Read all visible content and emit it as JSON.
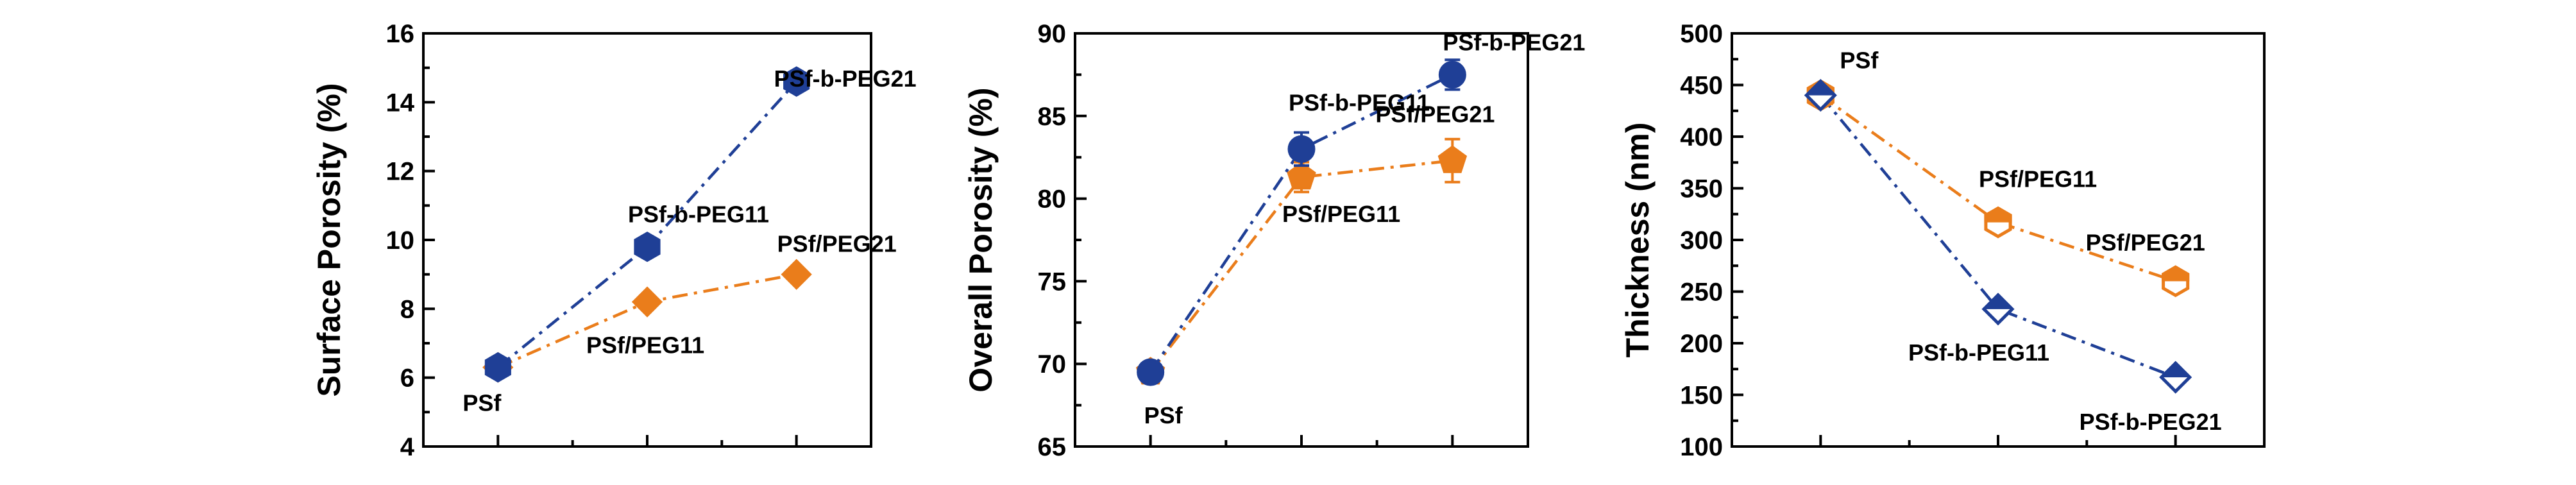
{
  "colors": {
    "blue": "#1f3f96",
    "orange": "#ea7d1b",
    "axis": "#000000"
  },
  "chart_data": [
    {
      "type": "line",
      "ylabel": "Surface Porosity (%)",
      "xlabel": "",
      "ylim": [
        4,
        16
      ],
      "yticks": [
        4,
        6,
        8,
        10,
        12,
        14,
        16
      ],
      "x": [
        1,
        2,
        3
      ],
      "grid": false,
      "series": [
        {
          "color": "orange",
          "marker": "diamond-filled",
          "values": [
            6.3,
            8.2,
            9.0
          ],
          "errors": [
            0,
            0,
            0
          ]
        },
        {
          "color": "blue",
          "marker": "hexagon-filled",
          "values": [
            6.3,
            9.8,
            14.6
          ],
          "errors": [
            0,
            0,
            0
          ]
        }
      ],
      "annotations": [
        {
          "text": "PSf",
          "x": 1,
          "y": 6.3,
          "anchor": "below"
        },
        {
          "text": "PSf-b-PEG11",
          "x": 2,
          "y": 9.8,
          "anchor": "above-left"
        },
        {
          "text": "PSf/PEG11",
          "x": 2,
          "y": 8.2,
          "anchor": "below-right"
        },
        {
          "text": "PSf-b-PEG21",
          "x": 3,
          "y": 14.6,
          "anchor": "above-left"
        },
        {
          "text": "PSf/PEG21",
          "x": 3,
          "y": 9.0,
          "anchor": "above"
        }
      ]
    },
    {
      "type": "line",
      "ylabel": "Overall Porosity (%)",
      "xlabel": "",
      "ylim": [
        65,
        90
      ],
      "yticks": [
        65,
        70,
        75,
        80,
        85,
        90
      ],
      "x": [
        1,
        2,
        3
      ],
      "grid": false,
      "series": [
        {
          "color": "orange",
          "marker": "pentagon-filled",
          "values": [
            69.5,
            81.3,
            82.3
          ],
          "errors": [
            0.4,
            0.9,
            1.3
          ]
        },
        {
          "color": "blue",
          "marker": "circle-filled",
          "values": [
            69.5,
            83.0,
            87.5
          ],
          "errors": [
            0.4,
            1.0,
            0.9
          ]
        }
      ],
      "annotations": [
        {
          "text": "PSf",
          "x": 1,
          "y": 69.5,
          "anchor": "below"
        },
        {
          "text": "PSf-b-PEG11",
          "x": 2,
          "y": 83.0,
          "anchor": "above-left"
        },
        {
          "text": "PSf/PEG11",
          "x": 2,
          "y": 81.3,
          "anchor": "below-right"
        },
        {
          "text": "PSf-b-PEG21",
          "x": 3,
          "y": 87.5,
          "anchor": "above-left"
        },
        {
          "text": "PSf/PEG21",
          "x": 3,
          "y": 82.3,
          "anchor": "above-right"
        }
      ]
    },
    {
      "type": "line",
      "ylabel": "Thickness (nm)",
      "xlabel": "",
      "ylim": [
        100,
        500
      ],
      "yticks": [
        100,
        150,
        200,
        250,
        300,
        350,
        400,
        450,
        500
      ],
      "x": [
        1,
        2,
        3
      ],
      "grid": false,
      "series": [
        {
          "color": "orange",
          "marker": "hexagon-half",
          "values": [
            440,
            317,
            260
          ],
          "errors": [
            0,
            0,
            0
          ]
        },
        {
          "color": "blue",
          "marker": "diamond-half",
          "values": [
            440,
            233,
            167
          ],
          "errors": [
            0,
            0,
            0
          ]
        }
      ],
      "annotations": [
        {
          "text": "PSf",
          "x": 1,
          "y": 440,
          "anchor": "above-right"
        },
        {
          "text": "PSf/PEG11",
          "x": 2,
          "y": 317,
          "anchor": "above"
        },
        {
          "text": "PSf/PEG21",
          "x": 3,
          "y": 260,
          "anchor": "above"
        },
        {
          "text": "PSf-b-PEG11",
          "x": 2,
          "y": 233,
          "anchor": "below"
        },
        {
          "text": "PSf-b-PEG21",
          "x": 3,
          "y": 167,
          "anchor": "below-right"
        }
      ]
    }
  ]
}
